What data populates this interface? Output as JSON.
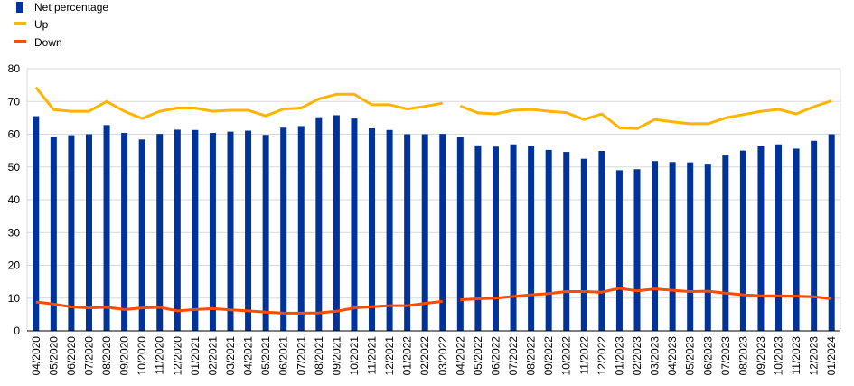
{
  "chart_data": {
    "type": "bar",
    "title": "",
    "xlabel": "",
    "ylabel": "",
    "ylim": [
      0,
      80
    ],
    "yticks": [
      0,
      10,
      20,
      30,
      40,
      50,
      60,
      70,
      80
    ],
    "grid": true,
    "legend_position": "top-left",
    "categories": [
      "04/2020",
      "05/2020",
      "06/2020",
      "07/2020",
      "08/2020",
      "09/2020",
      "10/2020",
      "11/2020",
      "12/2020",
      "01/2021",
      "02/2021",
      "03/2021",
      "04/2021",
      "05/2021",
      "06/2021",
      "07/2021",
      "08/2021",
      "09/2021",
      "10/2021",
      "11/2021",
      "12/2021",
      "01/2022",
      "02/2022",
      "03/2022",
      "04/2022",
      "05/2022",
      "06/2022",
      "07/2022",
      "08/2022",
      "09/2022",
      "10/2022",
      "11/2022",
      "12/2022",
      "01/2023",
      "02/2023",
      "03/2023",
      "04/2023",
      "05/2023",
      "06/2023",
      "07/2023",
      "08/2023",
      "09/2023",
      "10/2023",
      "11/2023",
      "12/2023",
      "01/2024"
    ],
    "series": [
      {
        "name": "Net percentage",
        "type": "bar",
        "color": "#003399",
        "values": [
          65.5,
          59.2,
          59.7,
          60.0,
          62.8,
          60.4,
          58.4,
          60.1,
          61.4,
          61.3,
          60.4,
          60.8,
          61.1,
          59.8,
          62.0,
          62.5,
          65.2,
          65.8,
          64.8,
          61.8,
          61.3,
          60.0,
          60.0,
          60.1,
          59.1,
          56.6,
          56.2,
          56.9,
          56.5,
          55.2,
          54.6,
          52.5,
          54.9,
          49.0,
          49.3,
          51.8,
          51.5,
          51.4,
          51.0,
          53.5,
          55.0,
          56.3,
          56.9,
          55.6,
          58.0,
          60.0
        ]
      },
      {
        "name": "Up",
        "type": "line",
        "color": "#FFB400",
        "values": [
          74.3,
          67.5,
          67.0,
          67.0,
          70.0,
          67.0,
          64.8,
          67.0,
          68.0,
          68.0,
          67.0,
          67.3,
          67.3,
          65.6,
          67.7,
          68.0,
          70.8,
          72.2,
          72.2,
          69.0,
          69.0,
          67.7,
          68.5,
          69.5,
          68.6,
          66.5,
          66.2,
          67.3,
          67.6,
          67.0,
          66.6,
          64.5,
          66.2,
          62.0,
          61.7,
          64.5,
          63.8,
          63.2,
          63.2,
          65.0,
          66.0,
          67.0,
          67.6,
          66.2,
          68.4,
          70.2
        ]
      },
      {
        "name": "Down",
        "type": "line",
        "color": "#FF4B00",
        "values": [
          8.8,
          8.2,
          7.3,
          7.0,
          7.2,
          6.5,
          7.0,
          7.2,
          6.1,
          6.5,
          6.8,
          6.4,
          6.1,
          5.7,
          5.4,
          5.4,
          5.5,
          6.0,
          7.0,
          7.4,
          7.7,
          7.7,
          8.4,
          9.0,
          9.5,
          9.8,
          10.0,
          10.5,
          11.0,
          11.4,
          12.0,
          12.0,
          11.8,
          13.0,
          12.2,
          12.8,
          12.4,
          12.0,
          12.1,
          11.5,
          11.0,
          10.7,
          10.7,
          10.6,
          10.4,
          9.8
        ]
      }
    ]
  }
}
